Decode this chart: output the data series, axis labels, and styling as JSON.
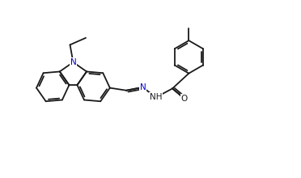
{
  "bg_color": "#ffffff",
  "line_color": "#1a1a1a",
  "atom_color_N": "#0000cc",
  "atom_color_O": "#1a1a1a",
  "line_width": 1.3,
  "fig_width": 3.72,
  "fig_height": 2.2,
  "dpi": 100,
  "xlim": [
    0.0,
    9.5
  ],
  "ylim": [
    0.3,
    5.8
  ]
}
